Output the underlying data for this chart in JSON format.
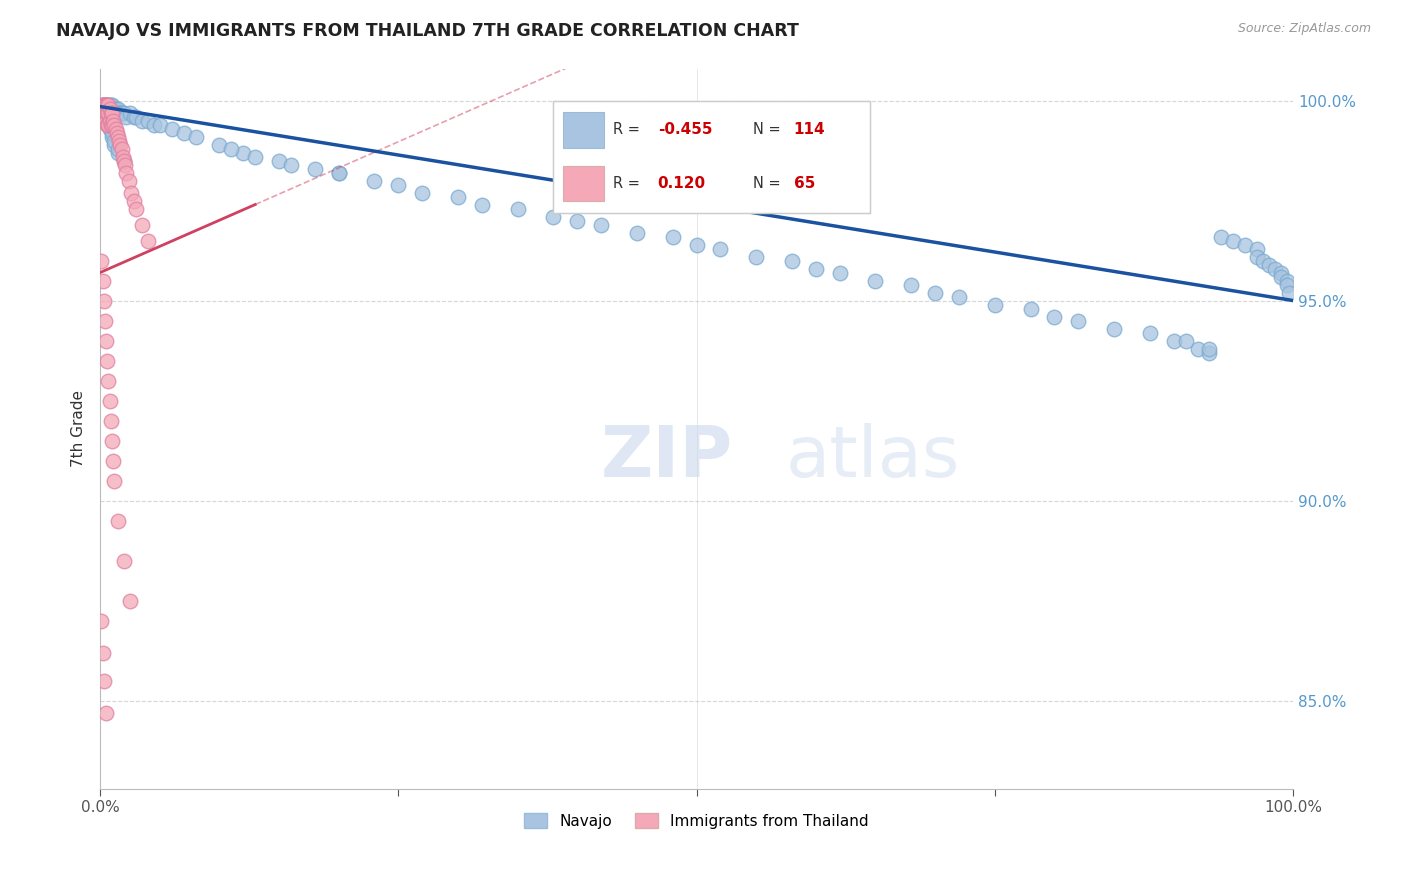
{
  "title": "NAVAJO VS IMMIGRANTS FROM THAILAND 7TH GRADE CORRELATION CHART",
  "source_text": "Source: ZipAtlas.com",
  "ylabel": "7th Grade",
  "xlim": [
    0,
    1.0
  ],
  "ylim": [
    0.828,
    1.008
  ],
  "xticks": [
    0.0,
    0.25,
    0.5,
    0.75,
    1.0
  ],
  "yticks": [
    0.85,
    0.9,
    0.95,
    1.0
  ],
  "navajo_R": -0.455,
  "navajo_N": 114,
  "thailand_R": 0.12,
  "thailand_N": 65,
  "navajo_color": "#a8c4e0",
  "thailand_color": "#f4a8b8",
  "navajo_line_color": "#1a52a0",
  "thailand_line_color": "#d04060",
  "watermark_zip": "ZIP",
  "watermark_atlas": "atlas",
  "background_color": "#ffffff",
  "grid_color": "#cccccc",
  "navajo_x": [
    0.002,
    0.003,
    0.004,
    0.005,
    0.005,
    0.006,
    0.006,
    0.007,
    0.007,
    0.008,
    0.008,
    0.009,
    0.009,
    0.01,
    0.01,
    0.011,
    0.012,
    0.013,
    0.014,
    0.015,
    0.016,
    0.017,
    0.018,
    0.019,
    0.02,
    0.022,
    0.025,
    0.028,
    0.03,
    0.035,
    0.04,
    0.045,
    0.05,
    0.06,
    0.07,
    0.08,
    0.1,
    0.12,
    0.15,
    0.18,
    0.2,
    0.25,
    0.3,
    0.35,
    0.4,
    0.45,
    0.5,
    0.55,
    0.6,
    0.65,
    0.7,
    0.75,
    0.8,
    0.85,
    0.9,
    0.92,
    0.93,
    0.94,
    0.95,
    0.96,
    0.97,
    0.97,
    0.975,
    0.98,
    0.985,
    0.99,
    0.99,
    0.995,
    0.995,
    0.997,
    0.003,
    0.004,
    0.005,
    0.006,
    0.007,
    0.008,
    0.01,
    0.012,
    0.015,
    0.02,
    0.003,
    0.004,
    0.005,
    0.006,
    0.007,
    0.008,
    0.009,
    0.01,
    0.012,
    0.015,
    0.003,
    0.005,
    0.007,
    0.009,
    0.11,
    0.13,
    0.16,
    0.2,
    0.23,
    0.27,
    0.32,
    0.38,
    0.42,
    0.48,
    0.52,
    0.58,
    0.62,
    0.68,
    0.72,
    0.78,
    0.82,
    0.88,
    0.91,
    0.93
  ],
  "navajo_y": [
    0.999,
    0.999,
    0.998,
    0.999,
    0.998,
    0.999,
    0.997,
    0.999,
    0.998,
    0.999,
    0.997,
    0.999,
    0.997,
    0.999,
    0.997,
    0.998,
    0.998,
    0.998,
    0.997,
    0.998,
    0.997,
    0.997,
    0.997,
    0.997,
    0.997,
    0.996,
    0.997,
    0.996,
    0.996,
    0.995,
    0.995,
    0.994,
    0.994,
    0.993,
    0.992,
    0.991,
    0.989,
    0.987,
    0.985,
    0.983,
    0.982,
    0.979,
    0.976,
    0.973,
    0.97,
    0.967,
    0.964,
    0.961,
    0.958,
    0.955,
    0.952,
    0.949,
    0.946,
    0.943,
    0.94,
    0.938,
    0.937,
    0.966,
    0.965,
    0.964,
    0.963,
    0.961,
    0.96,
    0.959,
    0.958,
    0.957,
    0.956,
    0.955,
    0.954,
    0.952,
    0.999,
    0.998,
    0.997,
    0.996,
    0.994,
    0.993,
    0.991,
    0.989,
    0.987,
    0.985,
    0.998,
    0.997,
    0.997,
    0.996,
    0.995,
    0.994,
    0.993,
    0.992,
    0.99,
    0.988,
    0.999,
    0.998,
    0.997,
    0.996,
    0.988,
    0.986,
    0.984,
    0.982,
    0.98,
    0.977,
    0.974,
    0.971,
    0.969,
    0.966,
    0.963,
    0.96,
    0.957,
    0.954,
    0.951,
    0.948,
    0.945,
    0.942,
    0.94,
    0.938
  ],
  "thailand_x": [
    0.001,
    0.001,
    0.001,
    0.002,
    0.002,
    0.002,
    0.003,
    0.003,
    0.003,
    0.003,
    0.004,
    0.004,
    0.004,
    0.005,
    0.005,
    0.005,
    0.006,
    0.006,
    0.006,
    0.007,
    0.007,
    0.007,
    0.008,
    0.008,
    0.009,
    0.009,
    0.01,
    0.01,
    0.011,
    0.012,
    0.013,
    0.014,
    0.015,
    0.016,
    0.017,
    0.018,
    0.019,
    0.02,
    0.021,
    0.022,
    0.024,
    0.026,
    0.028,
    0.03,
    0.035,
    0.04,
    0.001,
    0.002,
    0.003,
    0.004,
    0.005,
    0.006,
    0.007,
    0.008,
    0.009,
    0.01,
    0.011,
    0.012,
    0.015,
    0.02,
    0.025,
    0.001,
    0.002,
    0.003,
    0.005
  ],
  "thailand_y": [
    0.999,
    0.998,
    0.997,
    0.999,
    0.997,
    0.996,
    0.999,
    0.998,
    0.997,
    0.995,
    0.999,
    0.997,
    0.995,
    0.999,
    0.997,
    0.995,
    0.999,
    0.997,
    0.994,
    0.999,
    0.997,
    0.994,
    0.998,
    0.995,
    0.997,
    0.994,
    0.997,
    0.994,
    0.995,
    0.994,
    0.993,
    0.992,
    0.991,
    0.99,
    0.989,
    0.988,
    0.986,
    0.985,
    0.984,
    0.982,
    0.98,
    0.977,
    0.975,
    0.973,
    0.969,
    0.965,
    0.96,
    0.955,
    0.95,
    0.945,
    0.94,
    0.935,
    0.93,
    0.925,
    0.92,
    0.915,
    0.91,
    0.905,
    0.895,
    0.885,
    0.875,
    0.87,
    0.862,
    0.855,
    0.847
  ],
  "navajo_line_x0": 0.0,
  "navajo_line_x1": 1.0,
  "navajo_line_y0": 0.9985,
  "navajo_line_y1": 0.95,
  "thailand_line_x0": 0.0,
  "thailand_line_x1": 0.13,
  "thailand_line_y0": 0.957,
  "thailand_line_y1": 0.974
}
